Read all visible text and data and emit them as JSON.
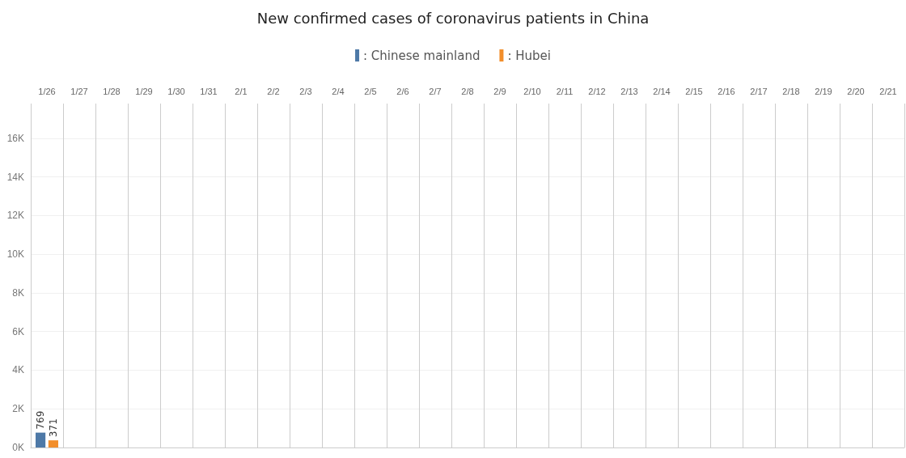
{
  "chart_data": {
    "type": "bar",
    "title": "New confirmed cases of coronavirus patients in China",
    "categories": [
      "1/26",
      "1/27",
      "1/28",
      "1/29",
      "1/30",
      "1/31",
      "2/1",
      "2/2",
      "2/3",
      "2/4",
      "2/5",
      "2/6",
      "2/7",
      "2/8",
      "2/9",
      "2/10",
      "2/11",
      "2/12",
      "2/13",
      "2/14",
      "2/15",
      "2/16",
      "2/17",
      "2/18",
      "2/19",
      "2/20",
      "2/21"
    ],
    "series": [
      {
        "name": ": Chinese mainland",
        "color": "#4e79a7",
        "values": [
          769,
          null,
          null,
          null,
          null,
          null,
          null,
          null,
          null,
          null,
          null,
          null,
          null,
          null,
          null,
          null,
          null,
          null,
          null,
          null,
          null,
          null,
          null,
          null,
          null,
          null,
          null
        ]
      },
      {
        "name": ": Hubei",
        "color": "#f28e2b",
        "values": [
          371,
          null,
          null,
          null,
          null,
          null,
          null,
          null,
          null,
          null,
          null,
          null,
          null,
          null,
          null,
          null,
          null,
          null,
          null,
          null,
          null,
          null,
          null,
          null,
          null,
          null,
          null
        ]
      }
    ],
    "ylim": [
      0,
      17800
    ],
    "yticks": [
      {
        "value": 0,
        "label": "0K"
      },
      {
        "value": 2000,
        "label": "2K"
      },
      {
        "value": 4000,
        "label": "4K"
      },
      {
        "value": 6000,
        "label": "6K"
      },
      {
        "value": 8000,
        "label": "8K"
      },
      {
        "value": 10000,
        "label": "10K"
      },
      {
        "value": 12000,
        "label": "12K"
      },
      {
        "value": 14000,
        "label": "14K"
      },
      {
        "value": 16000,
        "label": "16K"
      }
    ],
    "grid": true,
    "legend": "top",
    "data_labels": true
  }
}
